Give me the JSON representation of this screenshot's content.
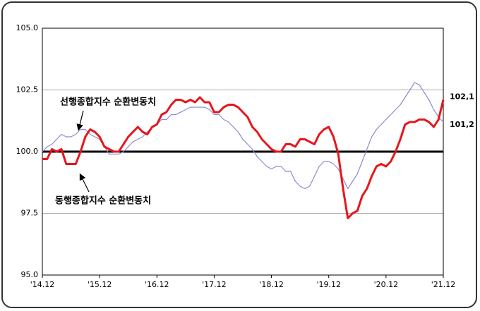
{
  "chart_data": {
    "type": "line",
    "categories": [
      "'14.12",
      null,
      null,
      null,
      null,
      null,
      null,
      null,
      null,
      null,
      null,
      null,
      "'15.12",
      null,
      null,
      null,
      null,
      null,
      null,
      null,
      null,
      null,
      null,
      null,
      "'16.12",
      null,
      null,
      null,
      null,
      null,
      null,
      null,
      null,
      null,
      null,
      null,
      "'17.12",
      null,
      null,
      null,
      null,
      null,
      null,
      null,
      null,
      null,
      null,
      null,
      "'18.12",
      null,
      null,
      null,
      null,
      null,
      null,
      null,
      null,
      null,
      null,
      null,
      "'19.12",
      null,
      null,
      null,
      null,
      null,
      null,
      null,
      null,
      null,
      null,
      null,
      "'20.12",
      null,
      null,
      null,
      null,
      null,
      null,
      null,
      null,
      null,
      null,
      null,
      "'21.12"
    ],
    "series": [
      {
        "name": "선행종합지수 순환변동치",
        "color": "#8a8ad0",
        "values": [
          100.0,
          100.2,
          100.3,
          100.5,
          100.7,
          100.6,
          100.6,
          100.7,
          100.9,
          100.9,
          100.7,
          100.6,
          100.5,
          100.2,
          99.9,
          99.9,
          99.9,
          100.0,
          100.2,
          100.4,
          100.5,
          100.6,
          100.8,
          101.0,
          101.1,
          101.3,
          101.3,
          101.5,
          101.5,
          101.6,
          101.7,
          101.8,
          101.8,
          101.8,
          101.8,
          101.7,
          101.5,
          101.5,
          101.3,
          101.2,
          101.0,
          100.8,
          100.5,
          100.3,
          100.1,
          99.8,
          99.6,
          99.4,
          99.3,
          99.4,
          99.4,
          99.2,
          99.2,
          98.8,
          98.6,
          98.5,
          98.6,
          99.0,
          99.4,
          99.6,
          99.6,
          99.5,
          99.3,
          98.9,
          98.5,
          98.8,
          99.1,
          99.6,
          100.1,
          100.6,
          100.9,
          101.1,
          101.3,
          101.5,
          101.7,
          101.9,
          102.2,
          102.5,
          102.8,
          102.7,
          102.4,
          102.1,
          101.7,
          101.4,
          101.2
        ],
        "value_labels": [
          null,
          null,
          null,
          null,
          null,
          null,
          null,
          null,
          null,
          null,
          null,
          null,
          null,
          null,
          null,
          null,
          null,
          null,
          null,
          null,
          null,
          null,
          null,
          null,
          null,
          null,
          null,
          null,
          null,
          null,
          null,
          null,
          null,
          null,
          null,
          null,
          null,
          null,
          null,
          null,
          null,
          null,
          null,
          null,
          null,
          null,
          null,
          null,
          null,
          null,
          null,
          null,
          null,
          null,
          null,
          null,
          null,
          null,
          null,
          null,
          null,
          null,
          null,
          null,
          null,
          null,
          null,
          null,
          null,
          null,
          null,
          null,
          null,
          null,
          null,
          null,
          null,
          null,
          null,
          null,
          null,
          null,
          null,
          null,
          "101,2"
        ]
      },
      {
        "name": "동행종합지수 순환변동치",
        "color": "#e8151b",
        "values": [
          99.7,
          99.7,
          100.1,
          100.0,
          100.1,
          99.5,
          99.5,
          99.5,
          100.0,
          100.6,
          100.9,
          100.8,
          100.6,
          100.2,
          100.1,
          100.0,
          100.0,
          100.3,
          100.6,
          100.8,
          101.0,
          100.8,
          100.7,
          101.0,
          101.1,
          101.5,
          101.6,
          101.9,
          102.1,
          102.1,
          102.0,
          102.1,
          102.0,
          102.2,
          102.0,
          102.0,
          101.6,
          101.6,
          101.8,
          101.9,
          101.9,
          101.8,
          101.6,
          101.4,
          101.0,
          100.8,
          100.5,
          100.3,
          100.1,
          100.0,
          100.0,
          100.3,
          100.3,
          100.2,
          100.5,
          100.5,
          100.4,
          100.3,
          100.7,
          100.9,
          101.0,
          100.6,
          99.9,
          98.5,
          97.3,
          97.5,
          97.6,
          98.2,
          98.5,
          99.0,
          99.4,
          99.5,
          99.4,
          99.6,
          100.0,
          100.5,
          101.1,
          101.2,
          101.2,
          101.3,
          101.3,
          101.2,
          101.0,
          101.3,
          102.1
        ],
        "value_labels": [
          null,
          null,
          null,
          null,
          null,
          null,
          null,
          null,
          null,
          null,
          null,
          null,
          null,
          null,
          null,
          null,
          null,
          null,
          null,
          null,
          null,
          null,
          null,
          null,
          null,
          null,
          null,
          null,
          null,
          null,
          null,
          null,
          null,
          null,
          null,
          null,
          null,
          null,
          null,
          null,
          null,
          null,
          null,
          null,
          null,
          null,
          null,
          null,
          null,
          null,
          null,
          null,
          null,
          null,
          null,
          null,
          null,
          null,
          null,
          null,
          null,
          null,
          null,
          null,
          null,
          null,
          null,
          null,
          null,
          null,
          null,
          null,
          null,
          null,
          null,
          null,
          null,
          null,
          null,
          null,
          null,
          null,
          null,
          null,
          "102,1"
        ]
      }
    ],
    "ylim": [
      95,
      105
    ],
    "yticks": [
      {
        "value": 95,
        "label": "95.0"
      },
      {
        "value": 97.5,
        "label": "97.5"
      },
      {
        "value": 100,
        "label": "100.0"
      },
      {
        "value": 102.5,
        "label": "102.5"
      },
      {
        "value": 105,
        "label": "105.0"
      }
    ],
    "grid": true,
    "reference_line": 100
  }
}
